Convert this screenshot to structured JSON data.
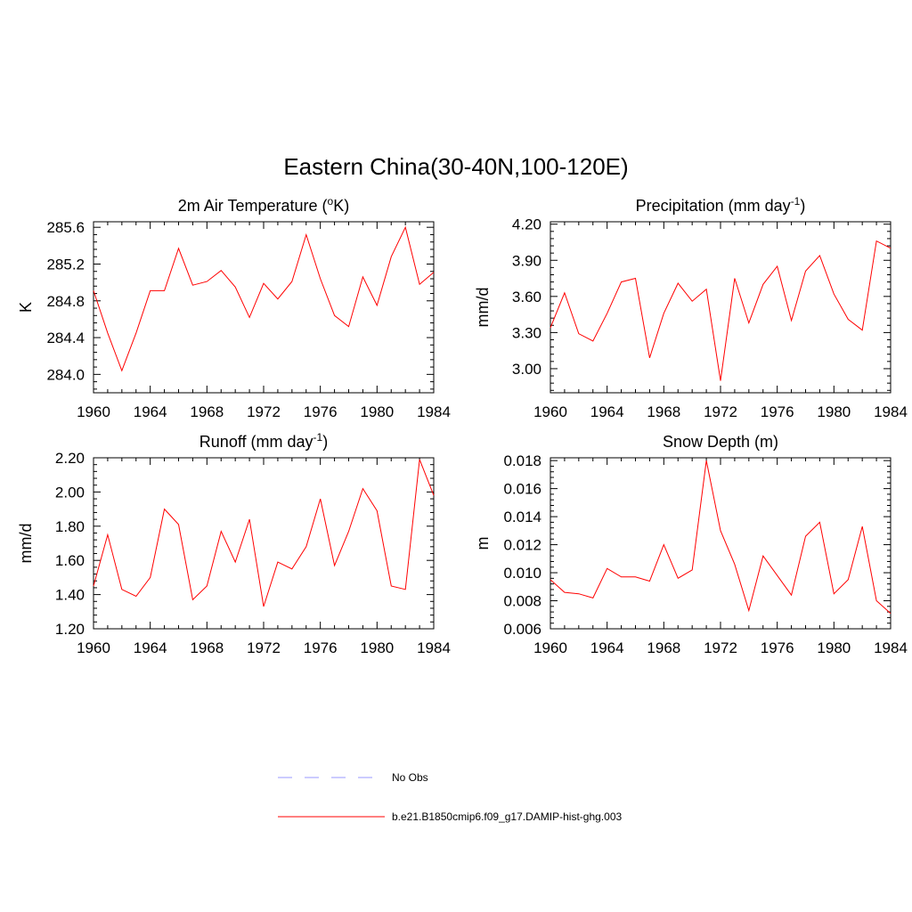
{
  "figure": {
    "title": "Eastern China(30-40N,100-120E)"
  },
  "chart_data": [
    {
      "type": "line",
      "title": "2m Air Temperature (",
      "title_sup": "o",
      "title_after": "K)",
      "ylabel": "K",
      "xlim": [
        1960,
        1984
      ],
      "ylim": [
        283.8,
        285.66
      ],
      "xticks": [
        1960,
        1964,
        1968,
        1972,
        1976,
        1980,
        1984
      ],
      "xtick_labels": [
        "1960",
        "1964",
        "1968",
        "1972",
        "1976",
        "1980",
        "1984"
      ],
      "yticks": [
        284.0,
        284.4,
        284.8,
        285.2,
        285.6
      ],
      "ytick_labels": [
        "284.0",
        "284.4",
        "284.8",
        "285.2",
        "285.6"
      ],
      "series": [
        {
          "color": "#ff0000",
          "x": [
            1960,
            1961,
            1962,
            1963,
            1964,
            1965,
            1966,
            1967,
            1968,
            1969,
            1970,
            1971,
            1972,
            1973,
            1974,
            1975,
            1976,
            1977,
            1978,
            1979,
            1980,
            1981,
            1982,
            1983,
            1984
          ],
          "y": [
            284.91,
            284.45,
            284.04,
            284.45,
            284.91,
            284.91,
            285.37,
            284.97,
            285.01,
            285.13,
            284.95,
            284.62,
            284.99,
            284.82,
            285.01,
            285.52,
            285.04,
            284.64,
            284.52,
            285.06,
            284.75,
            285.28,
            285.6,
            284.98,
            285.11
          ]
        }
      ]
    },
    {
      "type": "line",
      "title": "Precipitation (mm day",
      "title_sup": "-1",
      "title_after": ")",
      "ylabel": "mm/d",
      "xlim": [
        1960,
        1984
      ],
      "ylim": [
        2.8,
        4.22
      ],
      "xticks": [
        1960,
        1964,
        1968,
        1972,
        1976,
        1980,
        1984
      ],
      "xtick_labels": [
        "1960",
        "1964",
        "1968",
        "1972",
        "1976",
        "1980",
        "1984"
      ],
      "yticks": [
        3.0,
        3.3,
        3.6,
        3.9,
        4.2
      ],
      "ytick_labels": [
        "3.00",
        "3.30",
        "3.60",
        "3.90",
        "4.20"
      ],
      "series": [
        {
          "color": "#ff0000",
          "x": [
            1960,
            1961,
            1962,
            1963,
            1964,
            1965,
            1966,
            1967,
            1968,
            1969,
            1970,
            1971,
            1972,
            1973,
            1974,
            1975,
            1976,
            1977,
            1978,
            1979,
            1980,
            1981,
            1982,
            1983,
            1984
          ],
          "y": [
            3.34,
            3.63,
            3.29,
            3.23,
            3.46,
            3.72,
            3.75,
            3.09,
            3.46,
            3.71,
            3.56,
            3.66,
            2.9,
            3.75,
            3.38,
            3.7,
            3.85,
            3.4,
            3.81,
            3.94,
            3.62,
            3.41,
            3.32,
            4.06,
            4.0
          ]
        }
      ]
    },
    {
      "type": "line",
      "title": "Runoff (mm day",
      "title_sup": "-1",
      "title_after": ")",
      "ylabel": "mm/d",
      "xlim": [
        1960,
        1984
      ],
      "ylim": [
        1.2,
        2.2
      ],
      "xticks": [
        1960,
        1964,
        1968,
        1972,
        1976,
        1980,
        1984
      ],
      "xtick_labels": [
        "1960",
        "1964",
        "1968",
        "1972",
        "1976",
        "1980",
        "1984"
      ],
      "yticks": [
        1.2,
        1.4,
        1.6,
        1.8,
        2.0,
        2.2
      ],
      "ytick_labels": [
        "1.20",
        "1.40",
        "1.60",
        "1.80",
        "2.00",
        "2.20"
      ],
      "series": [
        {
          "color": "#ff0000",
          "x": [
            1960,
            1961,
            1962,
            1963,
            1964,
            1965,
            1966,
            1967,
            1968,
            1969,
            1970,
            1971,
            1972,
            1973,
            1974,
            1975,
            1976,
            1977,
            1978,
            1979,
            1980,
            1981,
            1982,
            1983,
            1984
          ],
          "y": [
            1.45,
            1.75,
            1.43,
            1.39,
            1.5,
            1.9,
            1.81,
            1.37,
            1.45,
            1.77,
            1.59,
            1.84,
            1.33,
            1.59,
            1.55,
            1.68,
            1.96,
            1.57,
            1.77,
            2.02,
            1.89,
            1.45,
            1.43,
            2.19,
            1.98
          ]
        }
      ]
    },
    {
      "type": "line",
      "title": "Snow Depth (m)",
      "ylabel": "m",
      "xlim": [
        1960,
        1984
      ],
      "ylim": [
        0.006,
        0.0182
      ],
      "xticks": [
        1960,
        1964,
        1968,
        1972,
        1976,
        1980,
        1984
      ],
      "xtick_labels": [
        "1960",
        "1964",
        "1968",
        "1972",
        "1976",
        "1980",
        "1984"
      ],
      "yticks": [
        0.006,
        0.008,
        0.01,
        0.012,
        0.014,
        0.016,
        0.018
      ],
      "ytick_labels": [
        "0.006",
        "0.008",
        "0.010",
        "0.012",
        "0.014",
        "0.016",
        "0.018"
      ],
      "series": [
        {
          "color": "#ff0000",
          "x": [
            1960,
            1961,
            1962,
            1963,
            1964,
            1965,
            1966,
            1967,
            1968,
            1969,
            1970,
            1971,
            1972,
            1973,
            1974,
            1975,
            1976,
            1977,
            1978,
            1979,
            1980,
            1981,
            1982,
            1983,
            1984
          ],
          "y": [
            0.0095,
            0.0086,
            0.0085,
            0.0082,
            0.0103,
            0.0097,
            0.0097,
            0.0094,
            0.012,
            0.0096,
            0.0102,
            0.018,
            0.013,
            0.0106,
            0.0073,
            0.0112,
            0.0098,
            0.0084,
            0.0126,
            0.0136,
            0.0085,
            0.0095,
            0.0133,
            0.008,
            0.0071
          ]
        }
      ]
    }
  ],
  "legend": {
    "placement": "bottom-center",
    "entries": [
      {
        "label": "No Obs",
        "color": "#9999ff",
        "style": "dashed"
      },
      {
        "label": "b.e21.B1850cmip6.f09_g17.DAMIP-hist-ghg.003",
        "color": "#ff0000",
        "style": "solid"
      }
    ]
  }
}
